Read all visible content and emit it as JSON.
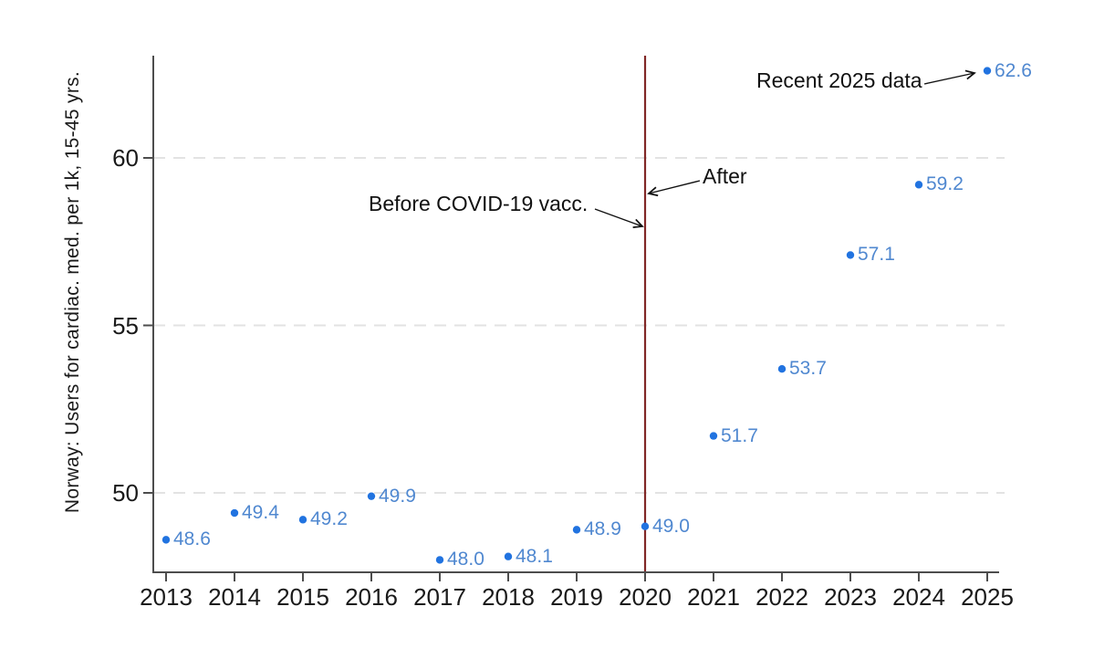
{
  "figure": {
    "y_axis_title": "Norway: Users for cardiac. med. per 1k, 15-45 yrs.",
    "annotations": {
      "before": "Before COVID-19 vacc.",
      "after": "After",
      "recent": "Recent 2025 data"
    }
  },
  "chart_data": {
    "type": "scatter",
    "title": "",
    "xlabel": "",
    "ylabel": "Norway: Users for cardiac. med. per 1k, 15-45 yrs.",
    "x": [
      2013,
      2014,
      2015,
      2016,
      2017,
      2018,
      2019,
      2020,
      2021,
      2022,
      2023,
      2024,
      2025
    ],
    "y": [
      48.6,
      49.4,
      49.2,
      49.9,
      48.0,
      48.1,
      48.9,
      49.0,
      51.7,
      53.7,
      57.1,
      59.2,
      62.6
    ],
    "point_labels": [
      "48.6",
      "49.4",
      "49.2",
      "49.9",
      "48.0",
      "48.1",
      "48.9",
      "49.0",
      "51.7",
      "53.7",
      "57.1",
      "59.2",
      "62.6"
    ],
    "x_ticks": [
      2013,
      2014,
      2015,
      2016,
      2017,
      2018,
      2019,
      2020,
      2021,
      2022,
      2023,
      2024,
      2025
    ],
    "y_ticks": [
      50,
      55,
      60
    ],
    "xlim": [
      2012.8,
      2025.2
    ],
    "ylim": [
      47.6,
      63.1
    ],
    "grid": "horizontal dashed lines at y ticks",
    "legend": "none",
    "vline": {
      "x": 2020,
      "color": "#812726"
    },
    "annotations": [
      {
        "text": "Before COVID-19 vacc.",
        "arrow_points_to": "vline at 2020, left side"
      },
      {
        "text": "After",
        "arrow_points_to": "vline at 2020, right side"
      },
      {
        "text": "Recent 2025 data",
        "arrow_points_to": "2025 data point (62.6)"
      }
    ],
    "colors": {
      "dot": "#2173e0",
      "point_label": "#5088d0",
      "vline": "#812726",
      "axis": "#4d4d4d",
      "grid": "#e3e3e3",
      "tick_text": "#1a1a1a",
      "annotation_text": "#111111"
    }
  }
}
